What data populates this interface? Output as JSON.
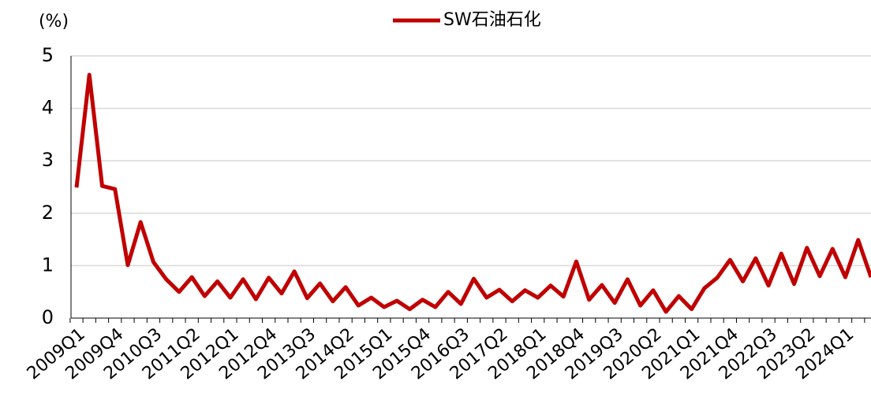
{
  "chart_data": {
    "type": "line",
    "y_label": "(%)",
    "categories": [
      "2009Q1",
      null,
      null,
      "2009Q4",
      null,
      null,
      "2010Q3",
      null,
      null,
      "2011Q2",
      null,
      null,
      "2012Q1",
      null,
      null,
      "2012Q4",
      null,
      null,
      "2013Q3",
      null,
      null,
      "2014Q2",
      null,
      null,
      "2015Q1",
      null,
      null,
      "2015Q4",
      null,
      null,
      "2016Q3",
      null,
      null,
      "2017Q2",
      null,
      null,
      "2018Q1",
      null,
      null,
      "2018Q4",
      null,
      null,
      "2019Q3",
      null,
      null,
      "2020Q2",
      null,
      null,
      "2021Q1",
      null,
      null,
      "2021Q4",
      null,
      null,
      "2022Q3",
      null,
      null,
      "2023Q2",
      null,
      null,
      "2024Q1",
      null,
      null
    ],
    "series": [
      {
        "name": "SW石油石化",
        "color": "#c00000",
        "values": [
          2.49,
          4.64,
          2.52,
          2.46,
          1.01,
          1.83,
          1.07,
          0.74,
          0.5,
          0.78,
          0.42,
          0.7,
          0.39,
          0.74,
          0.36,
          0.77,
          0.47,
          0.89,
          0.38,
          0.66,
          0.32,
          0.59,
          0.24,
          0.39,
          0.21,
          0.33,
          0.17,
          0.35,
          0.21,
          0.5,
          0.27,
          0.75,
          0.39,
          0.54,
          0.32,
          0.53,
          0.39,
          0.62,
          0.41,
          1.08,
          0.35,
          0.63,
          0.29,
          0.74,
          0.24,
          0.53,
          0.12,
          0.42,
          0.17,
          0.57,
          0.77,
          1.11,
          0.7,
          1.14,
          0.62,
          1.23,
          0.65,
          1.34,
          0.8,
          1.32,
          0.78,
          1.49,
          0.78
        ]
      }
    ],
    "ylim": [
      0,
      5
    ],
    "yticks": [
      0,
      1,
      2,
      3,
      4,
      5
    ],
    "grid": true,
    "legend": "top"
  }
}
